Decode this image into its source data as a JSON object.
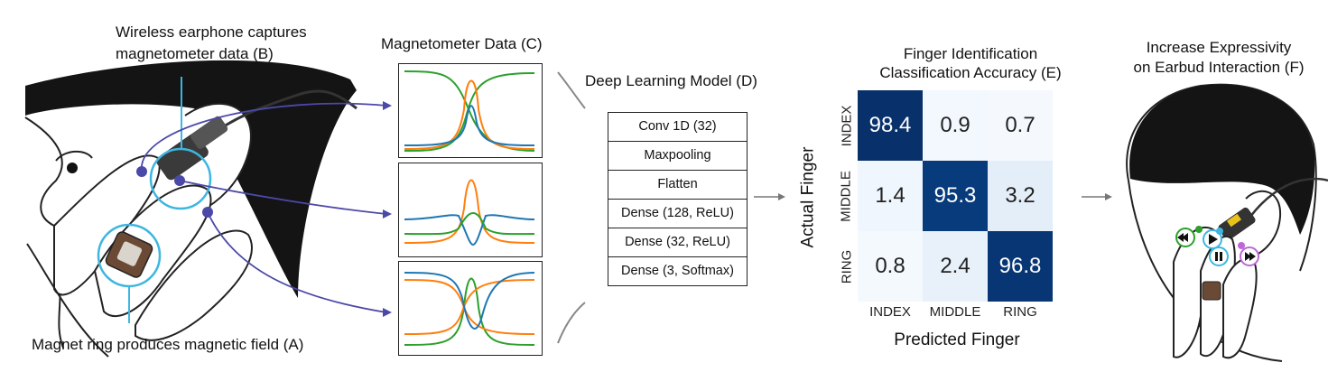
{
  "panel_a": {
    "label": "Magnet ring produces magnetic field  (A)"
  },
  "panel_b": {
    "label_line1": "Wireless earphone captures",
    "label_line2": "magnetometer data (B)"
  },
  "panel_c": {
    "title": "Magnetometer Data (C)"
  },
  "panel_d": {
    "title": "Deep Learning Model (D)",
    "layers": [
      "Conv 1D (32)",
      "Maxpooling",
      "Flatten",
      "Dense (128, ReLU)",
      "Dense (32, ReLU)",
      "Dense (3, Softmax)"
    ]
  },
  "panel_e": {
    "title_line1": "Finger Identification",
    "title_line2": "Classification Accuracy (E)",
    "ylabel": "Actual Finger",
    "xlabel": "Predicted Finger",
    "labels": [
      "INDEX",
      "MIDDLE",
      "RING"
    ],
    "matrix": [
      [
        "98.4",
        "0.9",
        "0.7"
      ],
      [
        "1.4",
        "95.3",
        "3.2"
      ],
      [
        "0.8",
        "2.4",
        "96.8"
      ]
    ]
  },
  "panel_f": {
    "title_line1": "Increase Expressivity",
    "title_line2": "on Earbud Interaction (F)"
  },
  "colors": {
    "blue": "#1f77b4",
    "orange": "#ff7f0e",
    "green": "#2ca02c",
    "cyan": "#3eb6e0",
    "purple": "#4b49a8"
  }
}
